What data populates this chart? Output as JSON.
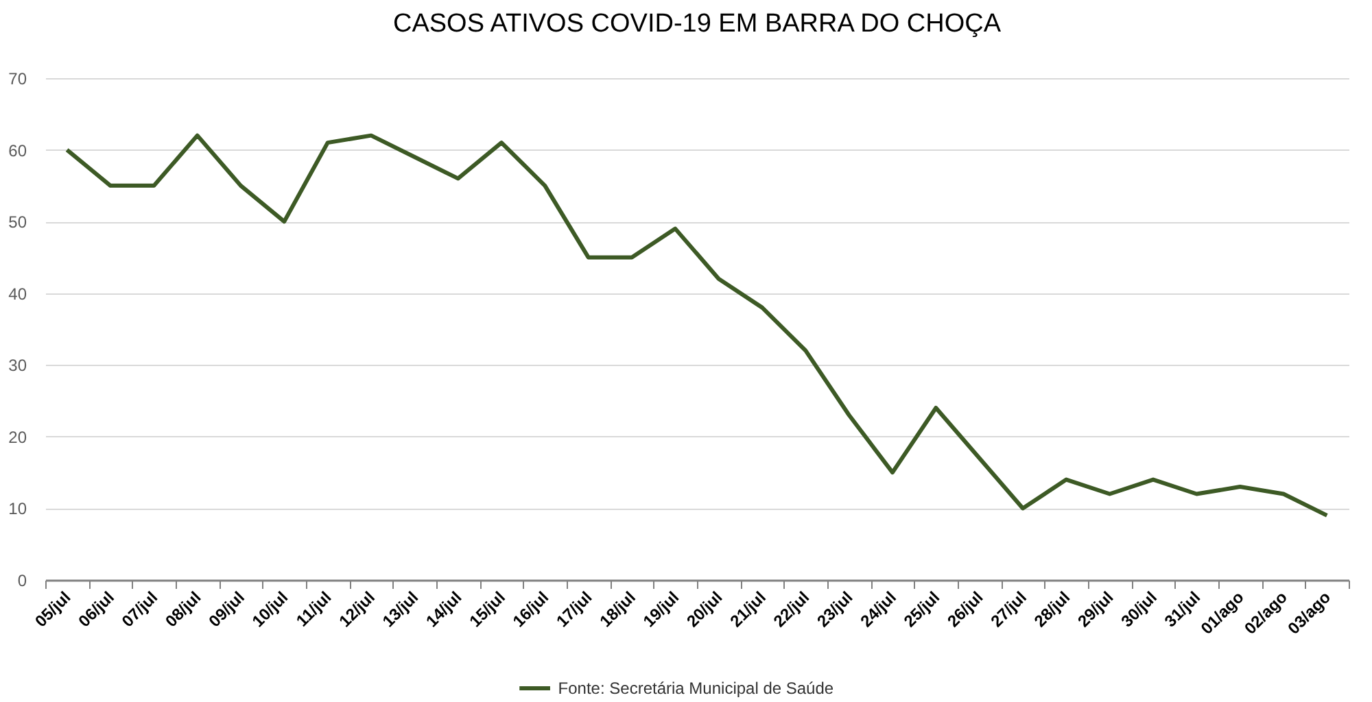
{
  "chart_data": {
    "type": "line",
    "title": "CASOS ATIVOS COVID-19 EM BARRA DO CHOÇA",
    "categories": [
      "05/jul",
      "06/jul",
      "07/jul",
      "08/jul",
      "09/jul",
      "10/jul",
      "11/jul",
      "12/jul",
      "13/jul",
      "14/jul",
      "15/jul",
      "16/jul",
      "17/jul",
      "18/jul",
      "19/jul",
      "20/jul",
      "21/jul",
      "22/jul",
      "23/jul",
      "24/jul",
      "25/jul",
      "26/jul",
      "27/jul",
      "28/jul",
      "29/jul",
      "30/jul",
      "31/jul",
      "01/ago",
      "02/ago",
      "03/ago"
    ],
    "series": [
      {
        "name": "Fonte: Secretária Municipal de Saúde",
        "color": "#3d5a25",
        "values": [
          60,
          55,
          55,
          62,
          55,
          50,
          61,
          62,
          59,
          56,
          61,
          55,
          45,
          45,
          49,
          42,
          38,
          32,
          23,
          15,
          24,
          17,
          10,
          14,
          12,
          14,
          12,
          13,
          12,
          9
        ]
      }
    ],
    "ylim": [
      0,
      70
    ],
    "yticks": [
      0,
      10,
      20,
      30,
      40,
      50,
      60,
      70
    ],
    "grid": "y",
    "legend": "bottom"
  }
}
